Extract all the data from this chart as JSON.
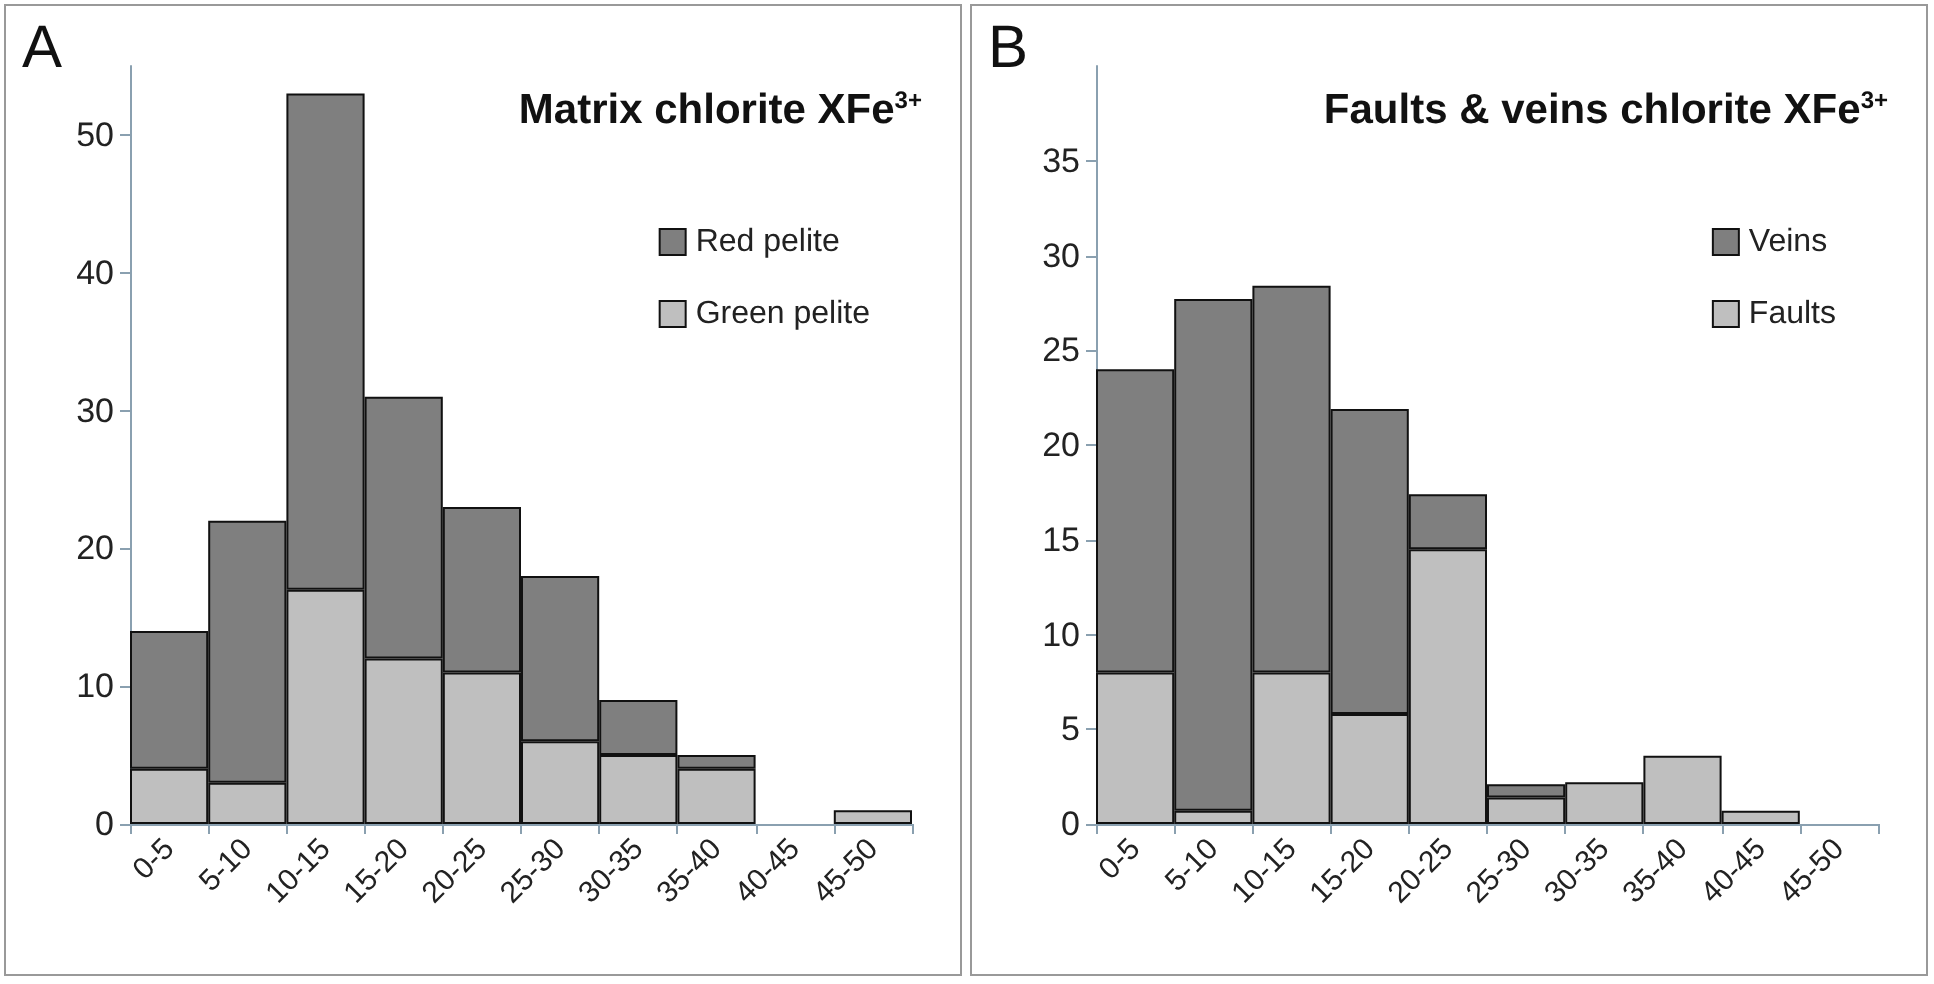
{
  "chart_data": [
    {
      "type": "bar",
      "title": "Matrix chlorite XFe$^{3+}$",
      "annotations": [
        "A"
      ],
      "stacked": true,
      "legend": "top right",
      "grid": false,
      "categories": [
        "0-5",
        "5-10",
        "10-15",
        "15-20",
        "20-25",
        "25-30",
        "30-35",
        "35-40",
        "40-45",
        "45-50"
      ],
      "series": [
        {
          "name": "Green pelite",
          "color": "#bfbfbf",
          "values": [
            4,
            3,
            17,
            12,
            11,
            6,
            5,
            4,
            0,
            1
          ]
        },
        {
          "name": "Red pelite",
          "color": "#7f7f7f",
          "values": [
            10,
            19,
            36,
            19,
            12,
            12,
            4,
            1,
            0,
            0
          ]
        }
      ],
      "ylim": [
        0,
        55
      ],
      "yticks": [
        0,
        10,
        20,
        30,
        40,
        50
      ]
    },
    {
      "type": "bar",
      "title": "Faults & veins chlorite XFe$^{3+}$",
      "annotations": [
        "B"
      ],
      "stacked": true,
      "legend": "top right",
      "grid": false,
      "categories": [
        "0-5",
        "5-10",
        "10-15",
        "15-20",
        "20-25",
        "25-30",
        "30-35",
        "35-40",
        "40-45",
        "45-50"
      ],
      "series": [
        {
          "name": "Faults",
          "color": "#bfbfbf",
          "values": [
            8,
            0.7,
            8,
            5.8,
            14.5,
            1.4,
            2.2,
            3.6,
            0.7,
            0
          ]
        },
        {
          "name": "Veins",
          "color": "#7f7f7f",
          "values": [
            16,
            27,
            20.4,
            16.1,
            2.9,
            0.7,
            0,
            0,
            0,
            0
          ]
        }
      ],
      "ylim": [
        0,
        40
      ],
      "yticks": [
        0,
        5,
        10,
        15,
        20,
        25,
        30,
        35
      ]
    }
  ]
}
